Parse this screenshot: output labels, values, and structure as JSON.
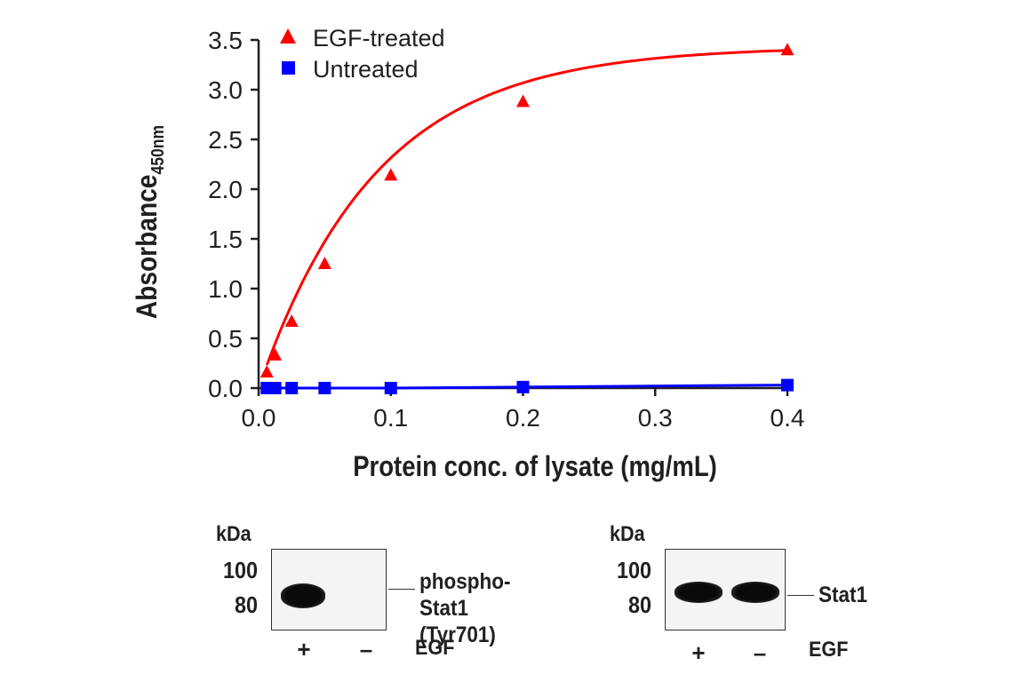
{
  "chart_data": {
    "type": "line",
    "xlabel": "Protein conc. of lysate (mg/mL)",
    "ylabel": "Absorbance",
    "ylabel_subscript": "450nm",
    "xlim": [
      0.0,
      0.4
    ],
    "ylim": [
      0.0,
      3.5
    ],
    "xticks": [
      "0.0",
      "0.1",
      "0.2",
      "0.3",
      "0.4"
    ],
    "yticks": [
      "0.0",
      "0.5",
      "1.0",
      "1.5",
      "2.0",
      "2.5",
      "3.0",
      "3.5"
    ],
    "legend_position": "top-left",
    "series": [
      {
        "name": "EGF-treated",
        "marker": "triangle",
        "color": "#ff0000",
        "x": [
          0.00625,
          0.0125,
          0.025,
          0.05,
          0.1,
          0.2,
          0.4
        ],
        "y": [
          0.16,
          0.33,
          0.67,
          1.25,
          2.14,
          2.88,
          3.4
        ]
      },
      {
        "name": "Untreated",
        "marker": "square",
        "color": "#0000ff",
        "x": [
          0.00625,
          0.0125,
          0.025,
          0.05,
          0.1,
          0.2,
          0.4
        ],
        "y": [
          0.0,
          0.0,
          0.0,
          0.0,
          0.0,
          0.01,
          0.03
        ]
      }
    ]
  },
  "blots": [
    {
      "kda_label": "kDa",
      "mw_markers": [
        "100",
        "80"
      ],
      "target_line1": "phospho-Stat1",
      "target_line2": "(Tyr701)",
      "lanes": [
        "+",
        "–"
      ],
      "treatment_label": "EGF"
    },
    {
      "kda_label": "kDa",
      "mw_markers": [
        "100",
        "80"
      ],
      "target_line1": "Stat1",
      "target_line2": "",
      "lanes": [
        "+",
        "–"
      ],
      "treatment_label": "EGF"
    }
  ]
}
